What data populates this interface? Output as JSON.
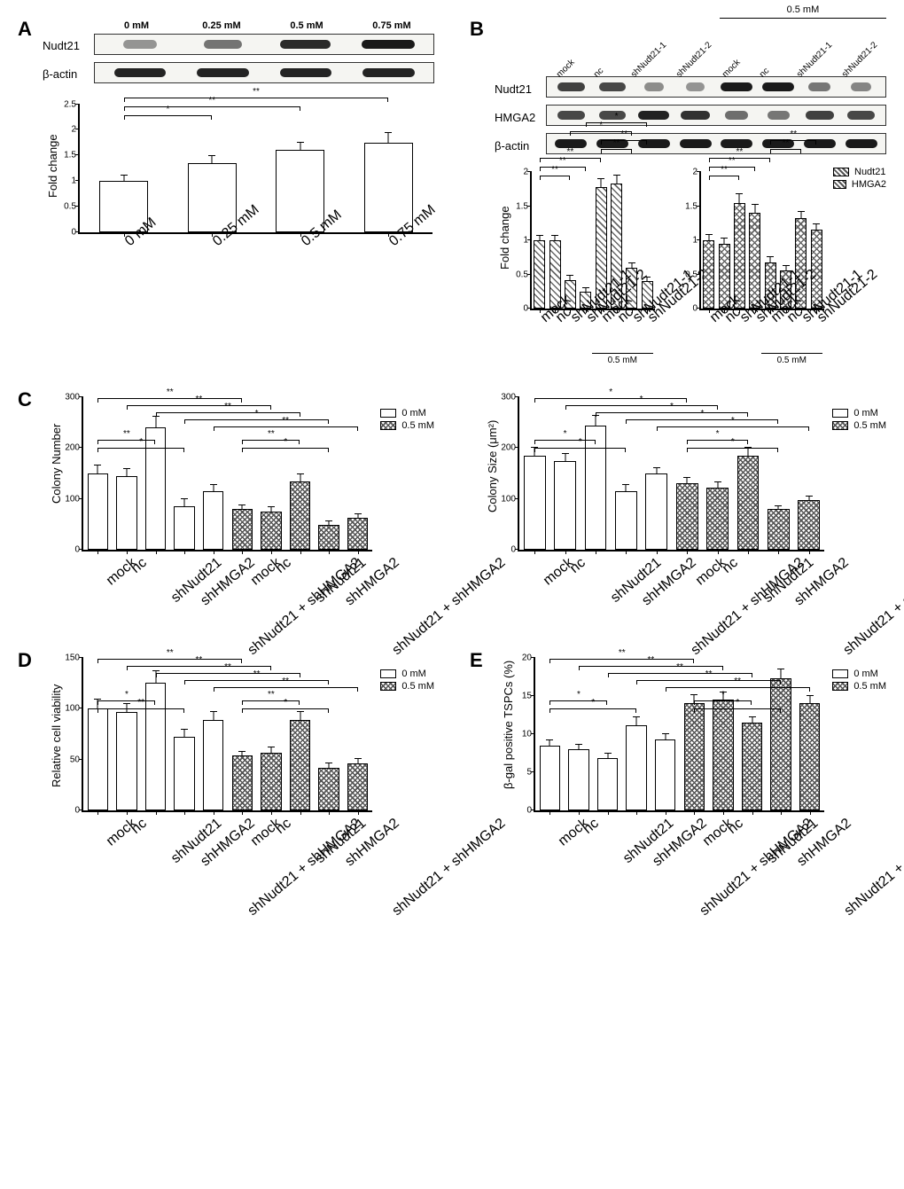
{
  "colors": {
    "open_fill": "#ffffff",
    "hatched_fill": "#b9b9b9",
    "border": "#000000",
    "bg": "#ffffff"
  },
  "legend_labels": {
    "dose0": "0 mM",
    "dose05": "0.5 mM",
    "nudt21": "Nudt21",
    "hmga2": "HMGA2"
  },
  "panelA": {
    "label": "A",
    "blot_rows": [
      "Nudt21",
      "β-actin"
    ],
    "lanes": [
      "0 mM",
      "0.25 mM",
      "0.5 mM",
      "0.75 mM"
    ],
    "band_intensity_nudt21": [
      0.25,
      0.45,
      0.9,
      1.0
    ],
    "band_intensity_actin": [
      0.95,
      0.95,
      0.95,
      0.95
    ],
    "chart": {
      "ylabel": "Fold change",
      "ylim": [
        0,
        2.5
      ],
      "yticks": [
        0,
        0.5,
        1.0,
        1.5,
        2.0,
        2.5
      ],
      "bar_width": 0.55,
      "categories": [
        "0 mM",
        "0.25 mM",
        "0.5 mM",
        "0.75 mM"
      ],
      "values": [
        1.0,
        1.35,
        1.6,
        1.75
      ],
      "errors": [
        0.1,
        0.14,
        0.14,
        0.18
      ],
      "sig": [
        {
          "from": 0,
          "to": 1,
          "label": "*",
          "level": 0
        },
        {
          "from": 0,
          "to": 2,
          "label": "**",
          "level": 1
        },
        {
          "from": 0,
          "to": 3,
          "label": "**",
          "level": 2
        }
      ],
      "fill": "#ffffff"
    }
  },
  "panelB": {
    "label": "B",
    "top_bracket": "0.5 mM",
    "lanes": [
      "mock",
      "nc",
      "shNudt21-1",
      "shNudt21-2",
      "mock",
      "nc",
      "shNudt21-1",
      "shNudt21-2"
    ],
    "blot_rows": [
      "Nudt21",
      "HMGA2",
      "β-actin"
    ],
    "band_intensity": {
      "Nudt21": [
        0.75,
        0.7,
        0.25,
        0.2,
        1.0,
        1.0,
        0.4,
        0.3
      ],
      "HMGA2": [
        0.7,
        0.7,
        0.95,
        0.85,
        0.45,
        0.4,
        0.75,
        0.7
      ],
      "β-actin": [
        1,
        1,
        1,
        1,
        1,
        1,
        1,
        1
      ]
    },
    "chart_left": {
      "ylabel": "Fold change",
      "ylim": [
        0,
        2.0
      ],
      "yticks": [
        0,
        0.5,
        1.0,
        1.5,
        2.0
      ],
      "bottom_bracket": "0.5 mM",
      "categories": [
        "mock",
        "nc",
        "shNudt21-1",
        "shNudt21-2",
        "mock",
        "nc",
        "shNudt21-1",
        "shNudt21-2"
      ],
      "values": [
        1.0,
        1.0,
        0.42,
        0.25,
        1.78,
        1.83,
        0.6,
        0.4
      ],
      "errors": [
        0.07,
        0.07,
        0.06,
        0.05,
        0.12,
        0.12,
        0.06,
        0.05
      ],
      "hatch": "cross",
      "sig": [
        {
          "from": 0,
          "to": 2,
          "label": "**",
          "level": 0
        },
        {
          "from": 0,
          "to": 3,
          "label": "**",
          "level": 1
        },
        {
          "from": 0,
          "to": 4,
          "label": "**",
          "level": 2
        },
        {
          "from": 4,
          "to": 6,
          "label": "**",
          "level": 3
        },
        {
          "from": 4,
          "to": 7,
          "label": "**",
          "level": 4
        },
        {
          "from": 2,
          "to": 6,
          "label": "*",
          "level": 5
        },
        {
          "from": 3,
          "to": 7,
          "label": "*",
          "level": 6
        }
      ]
    },
    "chart_right": {
      "ylim": [
        0,
        2.0
      ],
      "yticks": [
        0,
        0.5,
        1.0,
        1.5,
        2.0
      ],
      "bottom_bracket": "0.5 mM",
      "categories": [
        "mock",
        "nc",
        "shNudt21-1",
        "shNudt21-2",
        "mock",
        "nc",
        "shNudt21-1",
        "shNudt21-2"
      ],
      "values": [
        1.0,
        0.95,
        1.55,
        1.4,
        0.68,
        0.56,
        1.32,
        1.15
      ],
      "errors": [
        0.08,
        0.08,
        0.12,
        0.12,
        0.07,
        0.06,
        0.1,
        0.09
      ],
      "hatch": "check",
      "sig": [
        {
          "from": 0,
          "to": 2,
          "label": "**",
          "level": 0
        },
        {
          "from": 0,
          "to": 3,
          "label": "**",
          "level": 1
        },
        {
          "from": 0,
          "to": 4,
          "label": "**",
          "level": 2
        },
        {
          "from": 4,
          "to": 6,
          "label": "**",
          "level": 3
        },
        {
          "from": 4,
          "to": 7,
          "label": "**",
          "level": 4
        }
      ]
    }
  },
  "panelC": {
    "label": "C",
    "left": {
      "ylabel": "Colony Number",
      "ylim": [
        0,
        300
      ],
      "yticks": [
        0,
        100,
        200,
        300
      ],
      "groups": [
        "mock",
        "nc",
        "shNudt21",
        "shHMGA2",
        "shNudt21 + shHMGA2"
      ],
      "vals0": [
        150,
        145,
        240,
        85,
        115
      ],
      "vals05": [
        80,
        75,
        135,
        48,
        63
      ],
      "err0": [
        15,
        14,
        22,
        14,
        12
      ],
      "err05": [
        8,
        8,
        14,
        7,
        7
      ],
      "sig": [
        {
          "g": "0",
          "from": 0,
          "to": 2,
          "label": "**",
          "level": 0
        },
        {
          "g": "0",
          "from": 0,
          "to": 3,
          "label": "*",
          "level": 1
        },
        {
          "g": "05",
          "from": 0,
          "to": 2,
          "label": "**",
          "level": 0
        },
        {
          "g": "05",
          "from": 0,
          "to": 3,
          "label": "*",
          "level": 1
        },
        {
          "g": "cross",
          "from": 0,
          "to": 5,
          "label": "**",
          "level": 3
        },
        {
          "g": "cross",
          "from": 1,
          "to": 6,
          "label": "**",
          "level": 4
        },
        {
          "g": "cross",
          "from": 2,
          "to": 7,
          "label": "**",
          "level": 5
        },
        {
          "g": "cross",
          "from": 3,
          "to": 8,
          "label": "*",
          "level": 6
        },
        {
          "g": "cross",
          "from": 4,
          "to": 9,
          "label": "**",
          "level": 7
        }
      ]
    },
    "right": {
      "ylabel": "Colony Size (μm²)",
      "ylim": [
        0,
        300
      ],
      "yticks": [
        0,
        100,
        200,
        300
      ],
      "groups": [
        "mock",
        "nc",
        "shNudt21",
        "shHMGA2",
        "shNudt21 + shHMGA2"
      ],
      "vals0": [
        185,
        175,
        245,
        115,
        150
      ],
      "vals05": [
        130,
        122,
        185,
        80,
        98
      ],
      "err0": [
        15,
        14,
        18,
        12,
        10
      ],
      "err05": [
        12,
        10,
        16,
        6,
        7
      ],
      "sig": [
        {
          "g": "0",
          "from": 0,
          "to": 2,
          "label": "*",
          "level": 0
        },
        {
          "g": "0",
          "from": 0,
          "to": 3,
          "label": "*",
          "level": 1
        },
        {
          "g": "05",
          "from": 0,
          "to": 2,
          "label": "*",
          "level": 0
        },
        {
          "g": "05",
          "from": 0,
          "to": 3,
          "label": "*",
          "level": 1
        },
        {
          "g": "cross",
          "from": 0,
          "to": 5,
          "label": "*",
          "level": 3
        },
        {
          "g": "cross",
          "from": 1,
          "to": 6,
          "label": "*",
          "level": 4
        },
        {
          "g": "cross",
          "from": 2,
          "to": 7,
          "label": "*",
          "level": 5
        },
        {
          "g": "cross",
          "from": 3,
          "to": 8,
          "label": "*",
          "level": 6
        },
        {
          "g": "cross",
          "from": 4,
          "to": 9,
          "label": "*",
          "level": 7
        }
      ]
    }
  },
  "panelD": {
    "label": "D",
    "ylabel": "Relative cell viability",
    "ylim": [
      0,
      150
    ],
    "yticks": [
      0,
      50,
      100,
      150
    ],
    "groups": [
      "mock",
      "nc",
      "shNudt21",
      "shHMGA2",
      "shNudt21 + shHMGA2"
    ],
    "vals0": [
      100,
      97,
      126,
      72,
      89
    ],
    "vals05": [
      54,
      57,
      89,
      42,
      46
    ],
    "err0": [
      9,
      8,
      11,
      7,
      8
    ],
    "err05": [
      4,
      5,
      8,
      4,
      5
    ],
    "sig": [
      {
        "g": "0",
        "from": 0,
        "to": 2,
        "label": "*",
        "level": 0
      },
      {
        "g": "0",
        "from": 0,
        "to": 3,
        "label": "**",
        "level": 1
      },
      {
        "g": "05",
        "from": 0,
        "to": 2,
        "label": "**",
        "level": 0
      },
      {
        "g": "05",
        "from": 0,
        "to": 3,
        "label": "*",
        "level": 1
      },
      {
        "g": "cross",
        "from": 0,
        "to": 5,
        "label": "**",
        "level": 3
      },
      {
        "g": "cross",
        "from": 1,
        "to": 6,
        "label": "**",
        "level": 4
      },
      {
        "g": "cross",
        "from": 2,
        "to": 7,
        "label": "**",
        "level": 5
      },
      {
        "g": "cross",
        "from": 3,
        "to": 8,
        "label": "**",
        "level": 6
      },
      {
        "g": "cross",
        "from": 4,
        "to": 9,
        "label": "**",
        "level": 7
      }
    ]
  },
  "panelE": {
    "label": "E",
    "ylabel": "β-gal positive TSPCs (%)",
    "ylim": [
      0,
      20
    ],
    "yticks": [
      0,
      5,
      10,
      15,
      20
    ],
    "groups": [
      "mock",
      "nc",
      "shNudt21",
      "shHMGA2",
      "shNudt21 + shHMGA2"
    ],
    "vals0": [
      8.5,
      8.0,
      6.9,
      11.2,
      9.3
    ],
    "vals05": [
      14.1,
      14.5,
      11.5,
      17.3,
      14.1
    ],
    "err0": [
      0.7,
      0.6,
      0.5,
      1.0,
      0.7
    ],
    "err05": [
      1.0,
      1.0,
      0.7,
      1.2,
      0.9
    ],
    "sig": [
      {
        "g": "0",
        "from": 0,
        "to": 2,
        "label": "*",
        "level": 0
      },
      {
        "g": "0",
        "from": 0,
        "to": 3,
        "label": "*",
        "level": 1
      },
      {
        "g": "05",
        "from": 0,
        "to": 2,
        "label": "*",
        "level": 0
      },
      {
        "g": "05",
        "from": 0,
        "to": 3,
        "label": "*",
        "level": 1
      },
      {
        "g": "cross",
        "from": 0,
        "to": 5,
        "label": "**",
        "level": 3
      },
      {
        "g": "cross",
        "from": 1,
        "to": 6,
        "label": "**",
        "level": 4
      },
      {
        "g": "cross",
        "from": 2,
        "to": 7,
        "label": "**",
        "level": 5
      },
      {
        "g": "cross",
        "from": 3,
        "to": 8,
        "label": "**",
        "level": 6
      },
      {
        "g": "cross",
        "from": 4,
        "to": 9,
        "label": "**",
        "level": 7
      }
    ]
  }
}
